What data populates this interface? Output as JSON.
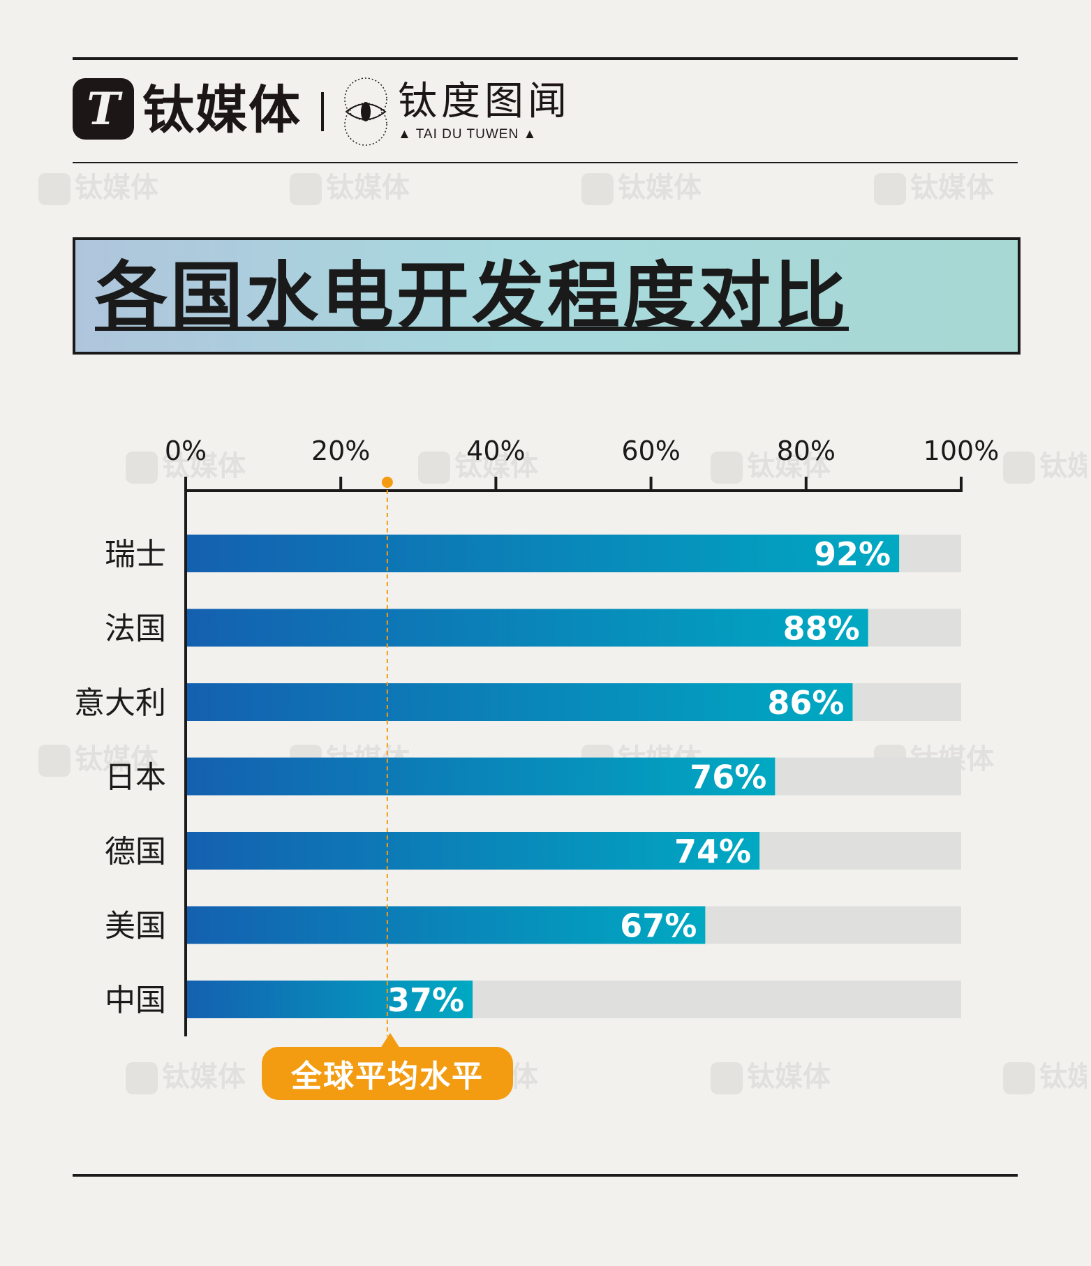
{
  "header": {
    "brand_mark": "T",
    "brand_name": "钛媒体",
    "sub_brand_cn": "钛度图闻",
    "sub_brand_en": "▲ TAI DU TUWEN ▲"
  },
  "watermark_text": "钛媒体",
  "title": "各国水电开发程度对比",
  "chart_data": {
    "type": "bar",
    "orientation": "horizontal",
    "categories": [
      "瑞士",
      "法国",
      "意大利",
      "日本",
      "德国",
      "美国",
      "中国"
    ],
    "values": [
      92,
      88,
      86,
      76,
      74,
      67,
      37
    ],
    "value_labels": [
      "92%",
      "88%",
      "86%",
      "76%",
      "74%",
      "67%",
      "37%"
    ],
    "xlim": [
      0,
      100
    ],
    "ticks": [
      0,
      20,
      40,
      60,
      80,
      100
    ],
    "tick_labels": [
      "0%",
      "20%",
      "40%",
      "60%",
      "80%",
      "100%"
    ],
    "reference_line": {
      "value": 26,
      "label": "全球平均水平",
      "color": "#f39c12"
    },
    "bar_gradient": [
      "#1460b0",
      "#00a9c2"
    ],
    "track_color": "#dfdfdd",
    "grid": false
  },
  "colors": {
    "background": "#f2f1ee",
    "accent": "#f39c12",
    "text": "#1a1a1a"
  }
}
